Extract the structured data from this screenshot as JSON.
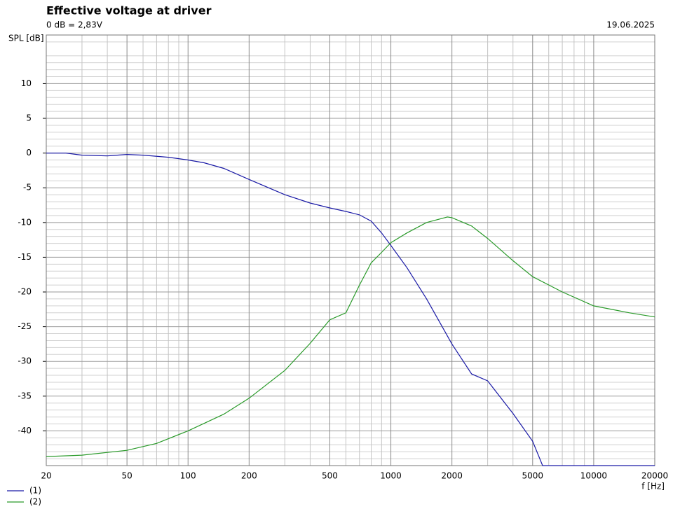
{
  "chart_data": {
    "type": "line",
    "title": "Effective voltage at driver",
    "subtitle": "0 dB = 2,83V",
    "date": "19.06.2025",
    "y_label": "SPL [dB]",
    "x_label": "f [Hz]",
    "log_x": true,
    "grid": true,
    "legend": "bottom-left",
    "xlim": [
      20,
      20000
    ],
    "xticks": [
      20,
      50,
      100,
      200,
      500,
      1000,
      2000,
      5000,
      10000,
      20000
    ],
    "xminorticks": [
      30,
      40,
      60,
      70,
      80,
      90,
      300,
      400,
      600,
      700,
      800,
      900,
      3000,
      4000,
      6000,
      7000,
      8000,
      9000
    ],
    "ylim": [
      -45,
      17
    ],
    "yticks": [
      10,
      5,
      0,
      -5,
      -10,
      -15,
      -20,
      -25,
      -30,
      -35,
      -40
    ],
    "yminorticks": [
      -44,
      -43,
      -42,
      -41,
      -39,
      -38,
      -37,
      -36,
      -34,
      -33,
      -32,
      -31,
      -29,
      -28,
      -27,
      -26,
      -24,
      -23,
      -22,
      -21,
      -19,
      -18,
      -17,
      -16,
      -14,
      -13,
      -12,
      -11,
      -9,
      -8,
      -7,
      -6,
      -4,
      -3,
      -2,
      -1,
      1,
      2,
      3,
      4,
      6,
      7,
      8,
      9,
      11,
      12,
      13,
      14,
      16
    ],
    "series": [
      {
        "name": "(1)",
        "color": "#1a1aa6",
        "x": [
          20,
          25,
          30,
          40,
          50,
          60,
          80,
          100,
          120,
          150,
          200,
          300,
          400,
          500,
          600,
          700,
          800,
          900,
          1000,
          1200,
          1500,
          2000,
          2500,
          3000,
          4000,
          5000,
          5600,
          7000,
          10000,
          20000
        ],
        "values": [
          0,
          0,
          -0.3,
          -0.4,
          -0.2,
          -0.3,
          -0.6,
          -1,
          -1.4,
          -2.2,
          -3.8,
          -6,
          -7.2,
          -7.9,
          -8.4,
          -8.9,
          -9.8,
          -11.5,
          -13.3,
          -16.5,
          -21,
          -27.5,
          -31.8,
          -32.8,
          -37.5,
          -41.5,
          -45,
          -45,
          -45,
          -45
        ]
      },
      {
        "name": "(2)",
        "color": "#2a9a2a",
        "x": [
          20,
          30,
          50,
          70,
          100,
          150,
          200,
          300,
          400,
          500,
          600,
          700,
          800,
          900,
          1000,
          1200,
          1500,
          1900,
          2000,
          2500,
          3000,
          4000,
          5000,
          7000,
          10000,
          15000,
          20000
        ],
        "values": [
          -43.7,
          -43.5,
          -42.8,
          -41.8,
          -40,
          -37.6,
          -35.3,
          -31.3,
          -27.4,
          -24,
          -23,
          -19,
          -15.8,
          -14.3,
          -12.9,
          -11.5,
          -10,
          -9.2,
          -9.3,
          -10.5,
          -12.3,
          -15.5,
          -17.8,
          -20,
          -22,
          -23,
          -23.6
        ]
      }
    ]
  }
}
